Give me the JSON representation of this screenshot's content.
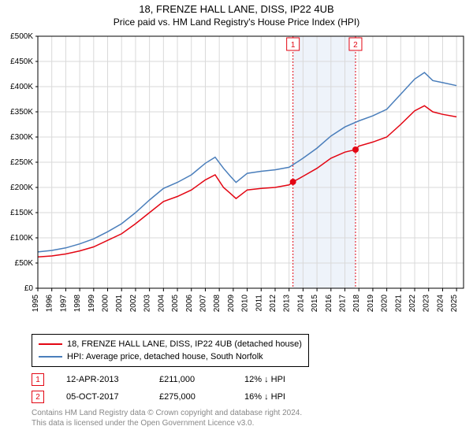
{
  "title": "18, FRENZE HALL LANE, DISS, IP22 4UB",
  "subtitle": "Price paid vs. HM Land Registry's House Price Index (HPI)",
  "chart": {
    "type": "line",
    "background_color": "#ffffff",
    "plot_border_color": "#000000",
    "grid_color": "#d9d9d9",
    "label_fontsize": 10,
    "yaxis": {
      "min": 0,
      "max": 500000,
      "tick_step": 50000,
      "tick_labels": [
        "£0",
        "£50K",
        "£100K",
        "£150K",
        "£200K",
        "£250K",
        "£300K",
        "£350K",
        "£400K",
        "£450K",
        "£500K"
      ]
    },
    "xaxis": {
      "min": 1995,
      "max": 2025.5,
      "ticks": [
        1995,
        1996,
        1997,
        1998,
        1999,
        2000,
        2001,
        2002,
        2003,
        2004,
        2005,
        2006,
        2007,
        2008,
        2009,
        2010,
        2011,
        2012,
        2013,
        2014,
        2015,
        2016,
        2017,
        2018,
        2019,
        2020,
        2021,
        2022,
        2023,
        2024,
        2025
      ],
      "tick_labels": [
        "1995",
        "1996",
        "1997",
        "1998",
        "1999",
        "2000",
        "2001",
        "2002",
        "2003",
        "2004",
        "2005",
        "2006",
        "2007",
        "2008",
        "2009",
        "2010",
        "2011",
        "2012",
        "2013",
        "2014",
        "2015",
        "2016",
        "2017",
        "2018",
        "2019",
        "2020",
        "2021",
        "2022",
        "2023",
        "2024",
        "2025"
      ]
    },
    "shaded_band": {
      "x_from": 2013.28,
      "x_to": 2017.76,
      "fill": "#eef3fa"
    },
    "series": [
      {
        "name": "subject",
        "label": "18, FRENZE HALL LANE, DISS, IP22 4UB (detached house)",
        "color": "#e30613",
        "line_width": 1.5,
        "points": [
          [
            1995,
            62000
          ],
          [
            1996,
            64000
          ],
          [
            1997,
            68000
          ],
          [
            1998,
            74000
          ],
          [
            1999,
            82000
          ],
          [
            2000,
            95000
          ],
          [
            2001,
            108000
          ],
          [
            2002,
            128000
          ],
          [
            2003,
            150000
          ],
          [
            2004,
            172000
          ],
          [
            2005,
            182000
          ],
          [
            2006,
            195000
          ],
          [
            2007,
            215000
          ],
          [
            2007.7,
            225000
          ],
          [
            2008.3,
            200000
          ],
          [
            2008.8,
            188000
          ],
          [
            2009.2,
            178000
          ],
          [
            2010,
            195000
          ],
          [
            2011,
            198000
          ],
          [
            2012,
            200000
          ],
          [
            2013,
            205000
          ],
          [
            2013.28,
            211000
          ],
          [
            2014,
            222000
          ],
          [
            2015,
            238000
          ],
          [
            2016,
            258000
          ],
          [
            2017,
            270000
          ],
          [
            2017.76,
            275000
          ],
          [
            2018,
            282000
          ],
          [
            2019,
            290000
          ],
          [
            2020,
            300000
          ],
          [
            2021,
            325000
          ],
          [
            2022,
            352000
          ],
          [
            2022.7,
            362000
          ],
          [
            2023.3,
            350000
          ],
          [
            2024,
            345000
          ],
          [
            2025,
            340000
          ]
        ]
      },
      {
        "name": "hpi",
        "label": "HPI: Average price, detached house, South Norfolk",
        "color": "#4a7ebb",
        "line_width": 1.5,
        "points": [
          [
            1995,
            72000
          ],
          [
            1996,
            75000
          ],
          [
            1997,
            80000
          ],
          [
            1998,
            88000
          ],
          [
            1999,
            98000
          ],
          [
            2000,
            112000
          ],
          [
            2001,
            128000
          ],
          [
            2002,
            150000
          ],
          [
            2003,
            175000
          ],
          [
            2004,
            198000
          ],
          [
            2005,
            210000
          ],
          [
            2006,
            225000
          ],
          [
            2007,
            248000
          ],
          [
            2007.7,
            260000
          ],
          [
            2008.3,
            238000
          ],
          [
            2008.8,
            222000
          ],
          [
            2009.2,
            210000
          ],
          [
            2010,
            228000
          ],
          [
            2011,
            232000
          ],
          [
            2012,
            235000
          ],
          [
            2013,
            240000
          ],
          [
            2014,
            258000
          ],
          [
            2015,
            278000
          ],
          [
            2016,
            302000
          ],
          [
            2017,
            320000
          ],
          [
            2018,
            332000
          ],
          [
            2019,
            342000
          ],
          [
            2020,
            355000
          ],
          [
            2021,
            385000
          ],
          [
            2022,
            415000
          ],
          [
            2022.7,
            428000
          ],
          [
            2023.3,
            412000
          ],
          [
            2024,
            408000
          ],
          [
            2025,
            402000
          ]
        ]
      }
    ],
    "markers": [
      {
        "id": "1",
        "x": 2013.28,
        "y": 211000,
        "color": "#e30613",
        "line_color": "#e30613"
      },
      {
        "id": "2",
        "x": 2017.76,
        "y": 275000,
        "color": "#e30613",
        "line_color": "#e30613"
      }
    ]
  },
  "legend": {
    "rows": [
      {
        "color": "#e30613",
        "label": "18, FRENZE HALL LANE, DISS, IP22 4UB (detached house)"
      },
      {
        "color": "#4a7ebb",
        "label": "HPI: Average price, detached house, South Norfolk"
      }
    ]
  },
  "sales": [
    {
      "id": "1",
      "date": "12-APR-2013",
      "price": "£211,000",
      "delta": "12% ↓ HPI",
      "marker_color": "#e30613"
    },
    {
      "id": "2",
      "date": "05-OCT-2017",
      "price": "£275,000",
      "delta": "16% ↓ HPI",
      "marker_color": "#e30613"
    }
  ],
  "attribution": {
    "line1": "Contains HM Land Registry data © Crown copyright and database right 2024.",
    "line2": "This data is licensed under the Open Government Licence v3.0."
  }
}
